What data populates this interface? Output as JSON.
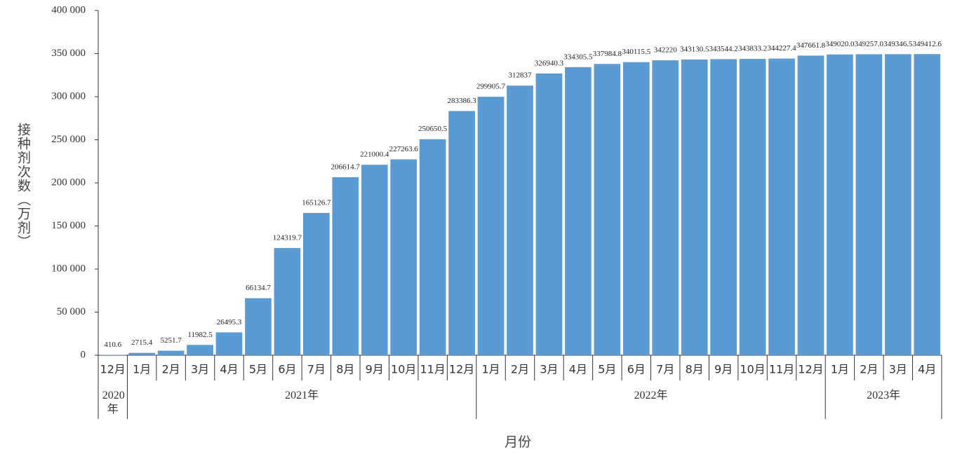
{
  "chart_data": {
    "type": "bar",
    "x_label": "月份",
    "y_label": "接种剂次数（万剂）",
    "categories": [
      [
        "12月",
        "2020年"
      ],
      [
        "1月",
        "2021年"
      ],
      [
        "2月",
        "2021年"
      ],
      [
        "3月",
        "2021年"
      ],
      [
        "4月",
        "2021年"
      ],
      [
        "5月",
        "2021年"
      ],
      [
        "6月",
        "2021年"
      ],
      [
        "7月",
        "2021年"
      ],
      [
        "8月",
        "2021年"
      ],
      [
        "9月",
        "2021年"
      ],
      [
        "10月",
        "2021年"
      ],
      [
        "11月",
        "2021年"
      ],
      [
        "12月",
        "2021年"
      ],
      [
        "1月",
        "2022年"
      ],
      [
        "2月",
        "2022年"
      ],
      [
        "3月",
        "2022年"
      ],
      [
        "4月",
        "2022年"
      ],
      [
        "5月",
        "2022年"
      ],
      [
        "6月",
        "2022年"
      ],
      [
        "7月",
        "2022年"
      ],
      [
        "8月",
        "2022年"
      ],
      [
        "9月",
        "2022年"
      ],
      [
        "10月",
        "2022年"
      ],
      [
        "11月",
        "2022年"
      ],
      [
        "12月",
        "2022年"
      ],
      [
        "1月",
        "2023年"
      ],
      [
        "2月",
        "2023年"
      ],
      [
        "3月",
        "2023年"
      ],
      [
        "4月",
        "2023年"
      ]
    ],
    "values": [
      410.6,
      2715.4,
      5251.7,
      11982.5,
      26495.3,
      66134.7,
      124319.7,
      165126.7,
      206614.7,
      221000.4,
      227263.6,
      250650.5,
      283386.3,
      299905.7,
      312837,
      326940.3,
      334305.5,
      337984.8,
      340115.5,
      342220,
      343130.5,
      343544.2,
      343833.2,
      344227.4,
      347661.8,
      349020,
      349257,
      349346.5,
      349412.6
    ],
    "value_labels": [
      "410.6",
      "2715.4",
      "5251.7",
      "11982.5",
      "26495.3",
      "66134.7",
      "124319.7",
      "165126.7",
      "206614.7",
      "221000.4",
      "227263.6",
      "250650.5",
      "283386.3",
      "299905.7",
      "312837",
      "326940.3",
      "334305.5",
      "337984.8",
      "340115.5",
      "342220",
      "343130.5",
      "343544.2",
      "343833.2",
      "344227.4",
      "347661.8",
      "349020.0",
      "349257.0",
      "349346.5",
      "349412.6"
    ],
    "color": "#5b9bd5",
    "ylim": [
      0,
      400000
    ],
    "yticks": [
      0,
      {
        "value": 50000,
        "label": "50 000"
      },
      {
        "value": 100000,
        "label": "100 000"
      },
      {
        "value": 150000,
        "label": "150 000"
      },
      {
        "value": 200000,
        "label": "200 000"
      },
      {
        "value": 250000,
        "label": "250 000"
      },
      {
        "value": 300000,
        "label": "300 000"
      },
      {
        "value": 350000,
        "label": "350 000"
      },
      {
        "value": 400000,
        "label": "400 000"
      }
    ]
  }
}
